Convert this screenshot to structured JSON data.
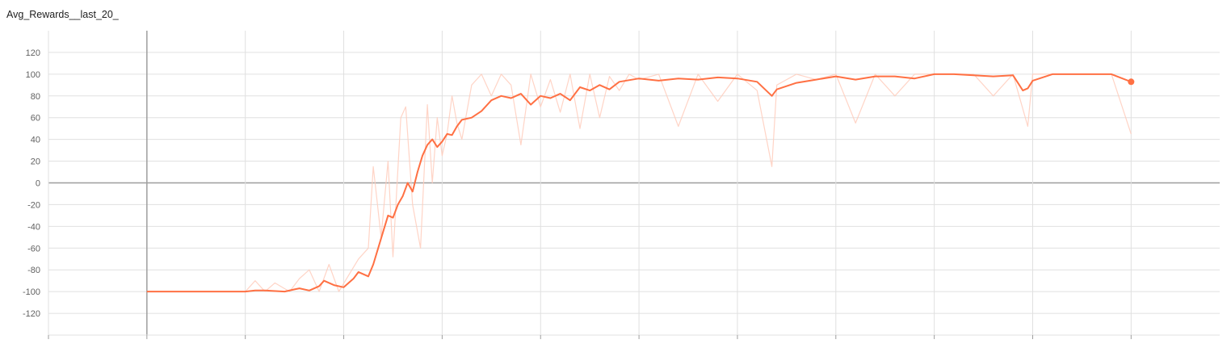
{
  "chart_data": {
    "type": "line",
    "title": "Avg_Rewards__last_20_",
    "xlabel": "",
    "ylabel": "",
    "ylim": [
      -140,
      140
    ],
    "yticks": [
      120,
      100,
      80,
      60,
      40,
      20,
      0,
      -20,
      -40,
      -60,
      -80,
      -100,
      -120
    ],
    "xlim": [
      -1,
      10.9
    ],
    "grid": true,
    "colors": {
      "smoothed": "#ff7043",
      "raw": "#ffccbc",
      "grid": "#e0e0e0",
      "zero": "#9e9e9e"
    },
    "series": [
      {
        "role": "smoothed",
        "x": [
          0,
          0.5,
          1.0,
          1.1,
          1.2,
          1.4,
          1.5,
          1.55,
          1.65,
          1.75,
          1.8,
          1.9,
          2.0,
          2.05,
          2.1,
          2.15,
          2.25,
          2.3,
          2.35,
          2.4,
          2.45,
          2.5,
          2.55,
          2.6,
          2.65,
          2.7,
          2.75,
          2.8,
          2.85,
          2.9,
          2.95,
          3.0,
          3.05,
          3.1,
          3.15,
          3.2,
          3.3,
          3.4,
          3.5,
          3.6,
          3.7,
          3.8,
          3.9,
          4.0,
          4.1,
          4.2,
          4.3,
          4.4,
          4.5,
          4.6,
          4.7,
          4.8,
          5.0,
          5.2,
          5.4,
          5.6,
          5.8,
          6.0,
          6.2,
          6.35,
          6.4,
          6.6,
          6.8,
          7.0,
          7.2,
          7.4,
          7.6,
          7.8,
          8.0,
          8.2,
          8.4,
          8.6,
          8.8,
          8.9,
          8.95,
          9.0,
          9.2,
          9.4,
          9.6,
          9.8,
          10.0
        ],
        "y": [
          -100,
          -100,
          -100,
          -99,
          -99,
          -100,
          -98,
          -97,
          -99,
          -95,
          -90,
          -94,
          -96,
          -92,
          -88,
          -82,
          -86,
          -75,
          -60,
          -45,
          -30,
          -32,
          -20,
          -12,
          0,
          -8,
          10,
          25,
          35,
          40,
          33,
          38,
          45,
          44,
          52,
          58,
          60,
          66,
          76,
          80,
          78,
          82,
          72,
          80,
          78,
          82,
          76,
          88,
          85,
          90,
          86,
          93,
          96,
          94,
          96,
          95,
          97,
          96,
          93,
          80,
          86,
          92,
          95,
          98,
          95,
          98,
          98,
          96,
          100,
          100,
          99,
          98,
          99,
          85,
          87,
          94,
          100,
          100,
          100,
          100,
          93
        ]
      },
      {
        "role": "raw",
        "x": [
          0,
          1.0,
          1.1,
          1.2,
          1.3,
          1.45,
          1.55,
          1.65,
          1.75,
          1.85,
          1.95,
          2.05,
          2.15,
          2.25,
          2.3,
          2.38,
          2.45,
          2.5,
          2.58,
          2.63,
          2.7,
          2.78,
          2.85,
          2.9,
          2.95,
          3.0,
          3.05,
          3.1,
          3.15,
          3.2,
          3.3,
          3.4,
          3.5,
          3.6,
          3.7,
          3.8,
          3.9,
          4.0,
          4.1,
          4.2,
          4.3,
          4.4,
          4.5,
          4.6,
          4.7,
          4.8,
          4.9,
          5.0,
          5.2,
          5.4,
          5.6,
          5.8,
          6.0,
          6.2,
          6.35,
          6.4,
          6.6,
          6.8,
          7.0,
          7.2,
          7.4,
          7.6,
          7.8,
          8.0,
          8.2,
          8.4,
          8.6,
          8.8,
          8.95,
          9.0,
          9.2,
          9.4,
          9.6,
          9.8,
          10.0
        ],
        "y": [
          -100,
          -100,
          -90,
          -100,
          -92,
          -100,
          -88,
          -80,
          -100,
          -75,
          -100,
          -85,
          -70,
          -60,
          15,
          -50,
          20,
          -68,
          60,
          70,
          -20,
          -60,
          72,
          0,
          60,
          25,
          45,
          80,
          55,
          40,
          90,
          100,
          80,
          100,
          90,
          35,
          100,
          70,
          95,
          65,
          100,
          50,
          100,
          60,
          98,
          85,
          100,
          95,
          100,
          52,
          100,
          75,
          100,
          85,
          15,
          90,
          100,
          95,
          100,
          55,
          100,
          80,
          100,
          100,
          100,
          100,
          80,
          100,
          52,
          100,
          100,
          100,
          100,
          100,
          45
        ]
      }
    ]
  }
}
